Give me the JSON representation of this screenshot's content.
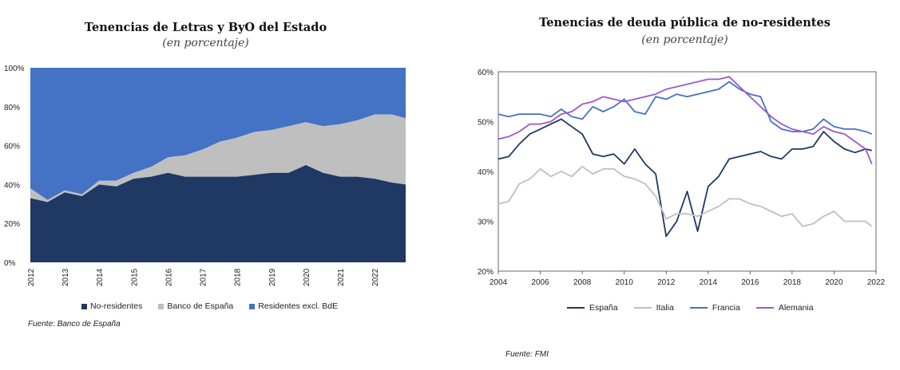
{
  "chart_data": [
    {
      "type": "area",
      "title": "Tenencias de Letras y ByO del Estado",
      "subtitle": "(en porcentaje)",
      "x": [
        2012.0,
        2012.5,
        2013.0,
        2013.5,
        2014.0,
        2014.5,
        2015.0,
        2015.5,
        2016.0,
        2016.5,
        2017.0,
        2017.5,
        2018.0,
        2018.5,
        2019.0,
        2019.5,
        2020.0,
        2020.5,
        2021.0,
        2021.5,
        2022.0,
        2022.5,
        2022.9
      ],
      "x_ticks": [
        "2012",
        "2013",
        "2014",
        "2015",
        "2016",
        "2017",
        "2018",
        "2019",
        "2020",
        "2021",
        "2022"
      ],
      "ylim": [
        0,
        100
      ],
      "y_ticks": [
        "0%",
        "20%",
        "40%",
        "60%",
        "80%",
        "100%"
      ],
      "stacked": true,
      "series": [
        {
          "name": "No-residentes",
          "color": "#1f3864",
          "values": [
            33,
            31,
            36,
            34,
            40,
            39,
            43,
            44,
            46,
            44,
            44,
            44,
            44,
            45,
            46,
            46,
            50,
            46,
            44,
            44,
            43,
            41,
            40
          ]
        },
        {
          "name": "Banco de España",
          "color": "#bfbfbf",
          "values": [
            5,
            1,
            1,
            1,
            2,
            3,
            3,
            5,
            8,
            11,
            14,
            18,
            20,
            22,
            22,
            24,
            22,
            24,
            27,
            29,
            33,
            35,
            34
          ]
        },
        {
          "name": "Residentes excl. BdE",
          "color": "#4472c4",
          "values": [
            62,
            68,
            63,
            65,
            58,
            58,
            54,
            51,
            46,
            45,
            42,
            38,
            36,
            33,
            32,
            30,
            28,
            30,
            29,
            27,
            24,
            24,
            26
          ]
        }
      ]
    },
    {
      "type": "line",
      "title": "Tenencias de deuda pública de no-residentes",
      "subtitle": "(en porcentaje)",
      "x": [
        2004.0,
        2004.5,
        2005.0,
        2005.5,
        2006.0,
        2006.5,
        2007.0,
        2007.5,
        2008.0,
        2008.5,
        2009.0,
        2009.5,
        2010.0,
        2010.5,
        2011.0,
        2011.5,
        2012.0,
        2012.5,
        2013.0,
        2013.5,
        2014.0,
        2014.5,
        2015.0,
        2015.5,
        2016.0,
        2016.5,
        2017.0,
        2017.5,
        2018.0,
        2018.5,
        2019.0,
        2019.5,
        2020.0,
        2020.5,
        2021.0,
        2021.5,
        2021.8
      ],
      "xlim": [
        2004,
        2022
      ],
      "x_ticks": [
        "2004",
        "2006",
        "2008",
        "2010",
        "2012",
        "2014",
        "2016",
        "2018",
        "2020",
        "2022"
      ],
      "ylim": [
        20,
        60
      ],
      "y_ticks": [
        "20%",
        "30%",
        "40%",
        "50%",
        "60%"
      ],
      "series": [
        {
          "name": "España",
          "color": "#1f3864",
          "values": [
            42.5,
            43,
            45.5,
            47.5,
            48.5,
            49.5,
            50.5,
            49,
            47.5,
            43.5,
            43,
            43.5,
            41.5,
            44.5,
            41.5,
            39.5,
            27,
            30,
            36,
            28,
            37,
            39,
            42.5,
            43,
            43.5,
            44,
            43,
            42.5,
            44.5,
            44.5,
            45,
            48,
            46,
            44.5,
            43.8,
            44.5,
            44.2
          ]
        },
        {
          "name": "Italia",
          "color": "#bfbfbf",
          "values": [
            33.5,
            34,
            37.5,
            38.5,
            40.5,
            39,
            40,
            39,
            41,
            39.5,
            40.5,
            40.5,
            39,
            38.5,
            37.5,
            35,
            30.5,
            31.5,
            31.5,
            31,
            32,
            33,
            34.5,
            34.5,
            33.5,
            33,
            32,
            31,
            31.5,
            29,
            29.5,
            31,
            32,
            30,
            30,
            30,
            29
          ]
        },
        {
          "name": "Francia",
          "color": "#4472c4",
          "values": [
            51.5,
            51,
            51.5,
            51.5,
            51.5,
            51,
            52.5,
            51,
            50.5,
            53,
            52,
            53,
            54.5,
            52,
            51.5,
            55,
            54.5,
            55.5,
            55,
            55.5,
            56,
            56.5,
            58,
            56.5,
            55.5,
            55,
            50,
            48.5,
            48,
            48,
            48.5,
            50.5,
            49,
            48.5,
            48.5,
            48,
            47.5
          ]
        },
        {
          "name": "Alemania",
          "color": "#9b59d0",
          "values": [
            46.5,
            47,
            48,
            49.5,
            49.5,
            50,
            51.5,
            52,
            53.5,
            54,
            55,
            54.5,
            54,
            54.5,
            55,
            55.5,
            56.5,
            57,
            57.5,
            58,
            58.5,
            58.5,
            59,
            57,
            55,
            53,
            51,
            49.5,
            48.5,
            48,
            47.5,
            49,
            48,
            47.5,
            46,
            44.5,
            41.5
          ]
        }
      ]
    }
  ],
  "left": {
    "title": "Tenencias de Letras y ByO del Estado",
    "subtitle": "(en porcentaje)",
    "legend": [
      "No-residentes",
      "Banco de España",
      "Residentes excl. BdE"
    ],
    "source": "Fuente: Banco de España"
  },
  "right": {
    "title": "Tenencias de deuda pública de no-residentes",
    "subtitle": "(en porcentaje)",
    "legend": [
      "España",
      "Italia",
      "Francia",
      "Alemania"
    ],
    "source": "Fuente: FMI"
  },
  "colors": {
    "navy": "#1f3864",
    "gray": "#bfbfbf",
    "blue": "#4472c4",
    "purple": "#9b59d0"
  }
}
